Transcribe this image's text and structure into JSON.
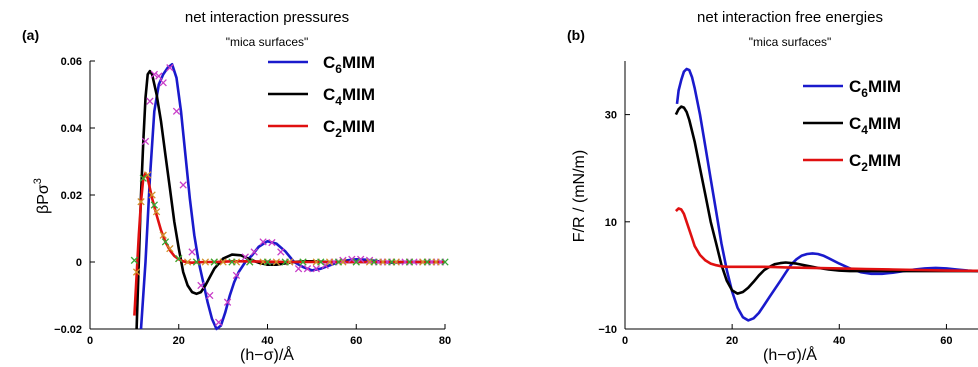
{
  "chart_data": [
    {
      "type": "line",
      "panel_label": "(a)",
      "title": "net interaction pressures",
      "subtitle": "\"mica surfaces\"",
      "xlabel": "(h−σ)/Å",
      "ylabel_parts": [
        "βPσ",
        "3"
      ],
      "xlim": [
        0,
        80
      ],
      "ylim": [
        -0.02,
        0.06
      ],
      "xticks": [
        0,
        20,
        40,
        60,
        80
      ],
      "yticks": [
        -0.02,
        0,
        0.02,
        0.04,
        0.06
      ],
      "ytick_labels": [
        "−0.02",
        "0",
        "0.02",
        "0.04",
        "0.06"
      ],
      "legend_position": "top-right",
      "series": [
        {
          "name_parts": [
            "C",
            "6",
            "MIM"
          ],
          "color": "#1a1acc",
          "x": [
            11.5,
            12.5,
            13.5,
            14.5,
            15.5,
            16.5,
            17.5,
            18.5,
            19.5,
            20.5,
            21.5,
            22.5,
            23.5,
            24.5,
            25.5,
            26.5,
            27.5,
            28.5,
            29.5,
            30.5,
            31.5,
            32.5,
            33.5,
            35,
            36.5,
            38,
            40,
            42,
            44,
            46,
            48,
            50,
            52,
            54,
            56,
            58,
            60,
            62,
            64,
            66,
            68,
            70,
            72,
            74,
            76,
            78,
            80
          ],
          "y": [
            -0.02,
            0.0,
            0.025,
            0.045,
            0.053,
            0.056,
            0.058,
            0.059,
            0.055,
            0.045,
            0.032,
            0.019,
            0.008,
            0.0,
            -0.006,
            -0.012,
            -0.017,
            -0.02,
            -0.019,
            -0.015,
            -0.01,
            -0.006,
            -0.003,
            0.0,
            0.002,
            0.0045,
            0.0062,
            0.0055,
            0.0032,
            0.0,
            -0.0015,
            -0.0025,
            -0.002,
            -0.001,
            0.0,
            0.0005,
            0.0008,
            0.0007,
            0.0004,
            0.0,
            -0.0002,
            -0.0001,
            0.0,
            0.0,
            0.0,
            0.0,
            0.0
          ]
        },
        {
          "name_parts": [
            "C",
            "4",
            "MIM"
          ],
          "color": "#000000",
          "x": [
            10.5,
            11,
            11.5,
            12,
            12.5,
            13,
            13.5,
            14,
            15,
            16,
            17,
            18,
            19,
            20,
            21,
            22,
            23,
            24,
            25,
            26,
            27,
            28,
            30,
            32,
            34,
            36,
            38,
            40,
            42,
            44,
            46,
            48,
            50,
            52,
            54,
            56,
            58,
            60,
            62,
            64,
            66,
            68,
            70,
            72,
            74,
            76,
            78,
            80
          ],
          "y": [
            -0.02,
            0.0,
            0.02,
            0.036,
            0.049,
            0.056,
            0.057,
            0.056,
            0.05,
            0.042,
            0.032,
            0.022,
            0.012,
            0.004,
            -0.003,
            -0.007,
            -0.009,
            -0.0095,
            -0.009,
            -0.007,
            -0.0045,
            -0.002,
            0.001,
            0.0022,
            0.002,
            0.0008,
            -0.0002,
            -0.0008,
            -0.0008,
            -0.0004,
            0.0,
            0.0002,
            0.0002,
            0.0001,
            0.0,
            0.0,
            0.0,
            0.0,
            0.0,
            0.0,
            0.0,
            0.0,
            0.0,
            0.0,
            0.0,
            0.0,
            0.0,
            0.0
          ]
        },
        {
          "name_parts": [
            "C",
            "2",
            "MIM"
          ],
          "color": "#e01010",
          "x": [
            10,
            10.5,
            11,
            11.5,
            12,
            12.5,
            13,
            13.5,
            14,
            15,
            16,
            17,
            18,
            19,
            20,
            21,
            22,
            23,
            24,
            26,
            28,
            30,
            32,
            35,
            40,
            45,
            50,
            55,
            60,
            65,
            70,
            75,
            80
          ],
          "y": [
            -0.016,
            -0.004,
            0.008,
            0.018,
            0.025,
            0.0265,
            0.025,
            0.022,
            0.019,
            0.014,
            0.0095,
            0.006,
            0.0035,
            0.0018,
            0.0008,
            0.0002,
            -0.0001,
            -0.0002,
            -0.0001,
            0.0,
            0.0,
            0.0001,
            0.0002,
            0.0002,
            0.0001,
            0.0,
            0.0,
            0.0,
            0.0,
            0.0,
            0.0,
            0.0,
            0.0
          ]
        }
      ],
      "markers": [
        {
          "color": "#c83cc8",
          "x": [
            12.5,
            13.5,
            14.5,
            15.5,
            16.5,
            18,
            19.5,
            21,
            23,
            25,
            27,
            29,
            31,
            33,
            35,
            37,
            39,
            41,
            43,
            45,
            47,
            49,
            51,
            53,
            55,
            57,
            59,
            61,
            63,
            65,
            67,
            69,
            71,
            73,
            75,
            77,
            79
          ],
          "y": [
            0.036,
            0.048,
            0.056,
            0.0555,
            0.0535,
            0.058,
            0.045,
            0.023,
            0.003,
            -0.007,
            -0.01,
            -0.018,
            -0.012,
            -0.004,
            0.0015,
            0.003,
            0.006,
            0.0058,
            0.003,
            0.0,
            -0.002,
            -0.002,
            -0.002,
            -0.001,
            0.0,
            0.0005,
            0.0008,
            0.0008,
            0.0005,
            0.0,
            0.0,
            0.0,
            0.0,
            0.0,
            0.0,
            0.0,
            0.0
          ]
        },
        {
          "color": "#d09028",
          "x": [
            10.5,
            11.5,
            13,
            14,
            15,
            16.5,
            18,
            20,
            22,
            24,
            26,
            28,
            30,
            33,
            36,
            39,
            42,
            45,
            48,
            51,
            54,
            57,
            60,
            63,
            66,
            69,
            72,
            75,
            78
          ],
          "y": [
            -0.003,
            0.018,
            0.026,
            0.02,
            0.015,
            0.008,
            0.004,
            0.001,
            0.0,
            0.0,
            0.0,
            0.0,
            0.0,
            0.0,
            0.0,
            0.0,
            0.0,
            0.0,
            0.0,
            0.0,
            0.0,
            0.0,
            0.0,
            0.0,
            0.0,
            0.0,
            0.0,
            0.0,
            0.0
          ]
        },
        {
          "color": "#34a834",
          "x": [
            10,
            12,
            14.5,
            17,
            20,
            24,
            28,
            32,
            36,
            40,
            44,
            48,
            52,
            56,
            60,
            64,
            68,
            72,
            76,
            80
          ],
          "y": [
            0.0005,
            0.025,
            0.017,
            0.006,
            0.001,
            0.0,
            0.0,
            0.0,
            0.0,
            0.0,
            0.0,
            0.0,
            0.0,
            0.0,
            0.0,
            0.0,
            0.0,
            0.0,
            0.0,
            0.0
          ]
        }
      ]
    },
    {
      "type": "line",
      "panel_label": "(b)",
      "title": "net interaction free energies",
      "subtitle": "\"mica surfaces\"",
      "xlabel": "(h−σ)/Å",
      "ylabel": "F/R / (mN/m)",
      "xlim": [
        0,
        70
      ],
      "ylim": [
        -10,
        40
      ],
      "xticks": [
        0,
        20,
        40,
        60
      ],
      "yticks": [
        -10,
        10,
        30
      ],
      "ytick_labels": [
        "−10",
        "10",
        "30"
      ],
      "legend_position": "top-right",
      "series": [
        {
          "name_parts": [
            "C",
            "6",
            "MIM"
          ],
          "color": "#1a1acc",
          "x": [
            9.7,
            10,
            10.5,
            11,
            11.5,
            12,
            12.5,
            13,
            14,
            15,
            16,
            17,
            18,
            19,
            20,
            21,
            22,
            23,
            24,
            25,
            26,
            27,
            28,
            29,
            30,
            31,
            32,
            33,
            34,
            35,
            36,
            37,
            38,
            40,
            42,
            44,
            46,
            48,
            50,
            52,
            54,
            56,
            58,
            60,
            62,
            64,
            66,
            68,
            70
          ],
          "y": [
            32,
            34.5,
            36.5,
            38,
            38.5,
            38.3,
            37,
            35,
            30,
            24,
            18,
            12,
            6,
            1,
            -3,
            -6,
            -7.8,
            -8.4,
            -8,
            -7,
            -5.5,
            -4,
            -2.5,
            -1,
            0.5,
            2,
            3,
            3.7,
            4,
            4.1,
            4,
            3.7,
            3.2,
            2.2,
            1.3,
            0.6,
            0.3,
            0.3,
            0.5,
            0.8,
            1.1,
            1.3,
            1.4,
            1.3,
            1.1,
            0.9,
            0.8,
            0.7,
            0.7
          ]
        },
        {
          "name_parts": [
            "C",
            "4",
            "MIM"
          ],
          "color": "#000000",
          "x": [
            9.5,
            10,
            10.5,
            11,
            11.5,
            12,
            13,
            14,
            15,
            16,
            17,
            18,
            19,
            20,
            21,
            22,
            23,
            24,
            25,
            26,
            27,
            28,
            29,
            30,
            32,
            34,
            36,
            38,
            40,
            42,
            45,
            48,
            52,
            56,
            60,
            65,
            70
          ],
          "y": [
            30,
            31,
            31.5,
            31.3,
            30.5,
            29,
            25,
            20,
            15,
            10,
            6,
            2,
            -1,
            -2.8,
            -3.4,
            -3.1,
            -2.3,
            -1.2,
            0,
            1,
            1.6,
            2.1,
            2.3,
            2.4,
            2.2,
            1.8,
            1.4,
            1.1,
            0.9,
            0.8,
            0.8,
            0.8,
            0.8,
            0.8,
            0.8,
            0.8,
            0.8
          ]
        },
        {
          "name_parts": [
            "C",
            "2",
            "MIM"
          ],
          "color": "#e01010",
          "x": [
            9.5,
            10,
            10.5,
            11,
            11.5,
            12,
            12.5,
            13,
            14,
            15,
            16,
            17,
            18,
            19,
            20,
            22,
            24,
            26,
            28,
            30,
            35,
            40,
            45,
            50,
            55,
            60,
            65,
            70
          ],
          "y": [
            12,
            12.5,
            12.3,
            11.5,
            10,
            8.5,
            7,
            5.5,
            3.8,
            2.8,
            2.2,
            1.9,
            1.7,
            1.6,
            1.6,
            1.6,
            1.6,
            1.6,
            1.55,
            1.5,
            1.4,
            1.3,
            1.2,
            1.1,
            1.0,
            0.9,
            0.85,
            0.8
          ]
        }
      ]
    }
  ]
}
